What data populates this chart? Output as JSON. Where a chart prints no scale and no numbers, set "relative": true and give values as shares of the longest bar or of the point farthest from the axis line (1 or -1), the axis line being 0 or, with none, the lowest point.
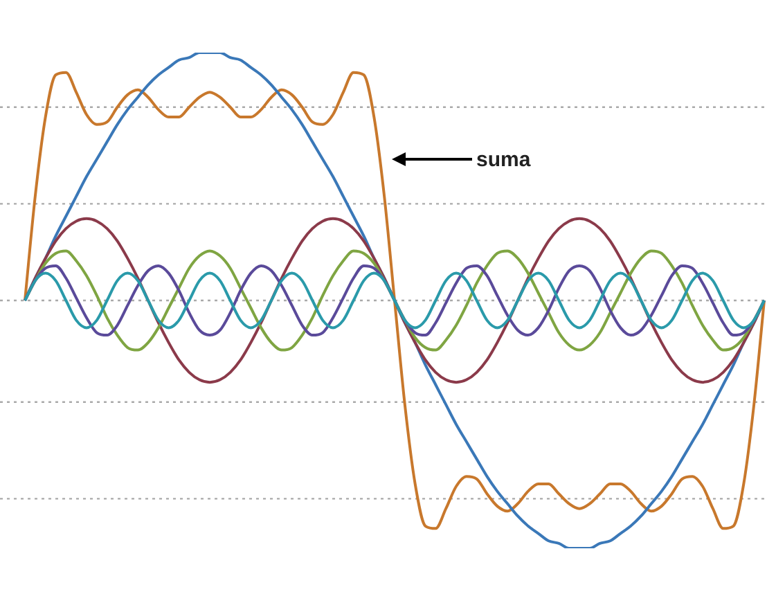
{
  "chart_data": {
    "type": "line",
    "relative": true,
    "legend": false,
    "marker": "none",
    "line_style": "solid",
    "categories": [
      null,
      null,
      null,
      null,
      null,
      null,
      null,
      null,
      null,
      null,
      null,
      null,
      null,
      null,
      null,
      null,
      null,
      null,
      null,
      null,
      null,
      null,
      null,
      null,
      null,
      null,
      null,
      null,
      null,
      null,
      null,
      null,
      null,
      null,
      null,
      null,
      null,
      null,
      null,
      null,
      null,
      null,
      null,
      null,
      null,
      null,
      null,
      null,
      null,
      null,
      null,
      null,
      null,
      null,
      null,
      null,
      null,
      null,
      null,
      null,
      null,
      null,
      null,
      null,
      null,
      null,
      null,
      null,
      null,
      null,
      null,
      null,
      null
    ],
    "series": [
      {
        "color": "#2a9aaa",
        "values": [
          0,
          0.08,
          0.11,
          0.08,
          0,
          -0.08,
          -0.11,
          -0.08,
          0,
          0.08,
          0.11,
          0.08,
          0,
          -0.08,
          -0.11,
          -0.08,
          0,
          0.08,
          0.11,
          0.08,
          0,
          -0.08,
          -0.11,
          -0.08,
          0,
          0.08,
          0.11,
          0.08,
          0,
          -0.08,
          -0.11,
          -0.08,
          0,
          0.08,
          0.11,
          0.08,
          0,
          -0.08,
          -0.11,
          -0.08,
          0,
          0.08,
          0.11,
          0.08,
          0,
          -0.08,
          -0.11,
          -0.08,
          0,
          0.08,
          0.11,
          0.08,
          0,
          -0.08,
          -0.11,
          -0.08,
          0,
          0.08,
          0.11,
          0.08,
          0,
          -0.08,
          -0.11,
          -0.08,
          0,
          0.08,
          0.11,
          0.08,
          0,
          -0.08,
          -0.11,
          -0.08,
          0
        ]
      },
      {
        "color": "#5a4a9a",
        "values": [
          0,
          0.08,
          0.13,
          0.14,
          0.09,
          0.01,
          -0.07,
          -0.13,
          -0.14,
          -0.1,
          -0.02,
          0.06,
          0.12,
          0.14,
          0.11,
          0.04,
          -0.05,
          -0.12,
          -0.14,
          -0.12,
          -0.05,
          0.04,
          0.11,
          0.14,
          0.12,
          0.06,
          -0.02,
          -0.1,
          -0.14,
          -0.13,
          -0.07,
          0.01,
          0.09,
          0.14,
          0.13,
          0.08,
          0,
          -0.08,
          -0.13,
          -0.14,
          -0.09,
          -0.01,
          0.07,
          0.13,
          0.14,
          0.1,
          0.02,
          -0.06,
          -0.12,
          -0.14,
          -0.11,
          -0.04,
          0.05,
          0.12,
          0.14,
          0.12,
          0.05,
          -0.04,
          -0.11,
          -0.14,
          -0.12,
          -0.06,
          0.02,
          0.1,
          0.14,
          0.13,
          0.07,
          -0.01,
          -0.09,
          -0.14,
          -0.13,
          -0.08,
          0
        ]
      },
      {
        "color": "#7fa542",
        "values": [
          0,
          0.08,
          0.15,
          0.19,
          0.2,
          0.16,
          0.1,
          0.02,
          -0.07,
          -0.14,
          -0.19,
          -0.2,
          -0.17,
          -0.11,
          -0.03,
          0.05,
          0.13,
          0.18,
          0.2,
          0.18,
          0.13,
          0.05,
          -0.03,
          -0.11,
          -0.17,
          -0.2,
          -0.19,
          -0.14,
          -0.07,
          0.02,
          0.1,
          0.16,
          0.2,
          0.19,
          0.15,
          0.08,
          0,
          -0.08,
          -0.15,
          -0.19,
          -0.2,
          -0.16,
          -0.1,
          -0.02,
          0.07,
          0.14,
          0.19,
          0.2,
          0.17,
          0.11,
          0.03,
          -0.05,
          -0.13,
          -0.18,
          -0.2,
          -0.18,
          -0.13,
          -0.05,
          0.03,
          0.11,
          0.17,
          0.2,
          0.19,
          0.14,
          0.07,
          -0.02,
          -0.1,
          -0.16,
          -0.2,
          -0.19,
          -0.15,
          -0.08,
          0
        ]
      },
      {
        "color": "#8b3a4a",
        "values": [
          0,
          0.09,
          0.17,
          0.24,
          0.29,
          0.32,
          0.33,
          0.32,
          0.29,
          0.24,
          0.17,
          0.09,
          0,
          -0.09,
          -0.17,
          -0.24,
          -0.29,
          -0.32,
          -0.33,
          -0.32,
          -0.29,
          -0.24,
          -0.17,
          -0.09,
          0,
          0.09,
          0.17,
          0.24,
          0.29,
          0.32,
          0.33,
          0.32,
          0.29,
          0.24,
          0.17,
          0.09,
          0,
          -0.09,
          -0.17,
          -0.24,
          -0.29,
          -0.32,
          -0.33,
          -0.32,
          -0.29,
          -0.24,
          -0.17,
          -0.09,
          0,
          0.09,
          0.17,
          0.24,
          0.29,
          0.32,
          0.33,
          0.32,
          0.29,
          0.24,
          0.17,
          0.09,
          0,
          -0.09,
          -0.17,
          -0.24,
          -0.29,
          -0.32,
          -0.33,
          -0.32,
          -0.29,
          -0.24,
          -0.17,
          -0.09,
          0
        ]
      },
      {
        "color": "#3a78b8",
        "values": [
          0,
          0.09,
          0.17,
          0.26,
          0.34,
          0.42,
          0.5,
          0.57,
          0.64,
          0.71,
          0.77,
          0.82,
          0.87,
          0.91,
          0.94,
          0.97,
          0.98,
          1,
          1,
          1,
          0.98,
          0.97,
          0.94,
          0.91,
          0.87,
          0.82,
          0.77,
          0.71,
          0.64,
          0.57,
          0.5,
          0.42,
          0.34,
          0.26,
          0.17,
          0.09,
          0,
          -0.09,
          -0.17,
          -0.26,
          -0.34,
          -0.42,
          -0.5,
          -0.57,
          -0.64,
          -0.71,
          -0.77,
          -0.82,
          -0.87,
          -0.91,
          -0.94,
          -0.97,
          -0.98,
          -1,
          -1,
          -1,
          -0.98,
          -0.97,
          -0.94,
          -0.91,
          -0.87,
          -0.82,
          -0.77,
          -0.71,
          -0.64,
          -0.57,
          -0.5,
          -0.42,
          -0.34,
          -0.26,
          -0.17,
          -0.09,
          0
        ]
      },
      {
        "color": "#c8782c",
        "values": [
          0,
          0.42,
          0.74,
          0.91,
          0.92,
          0.84,
          0.75,
          0.71,
          0.72,
          0.78,
          0.83,
          0.85,
          0.82,
          0.77,
          0.74,
          0.74,
          0.78,
          0.82,
          0.84,
          0.82,
          0.78,
          0.74,
          0.74,
          0.77,
          0.82,
          0.85,
          0.83,
          0.78,
          0.72,
          0.71,
          0.75,
          0.84,
          0.92,
          0.91,
          0.74,
          0.42,
          0,
          -0.42,
          -0.74,
          -0.91,
          -0.92,
          -0.84,
          -0.75,
          -0.71,
          -0.72,
          -0.78,
          -0.83,
          -0.85,
          -0.82,
          -0.77,
          -0.74,
          -0.74,
          -0.78,
          -0.82,
          -0.84,
          -0.82,
          -0.78,
          -0.74,
          -0.74,
          -0.77,
          -0.82,
          -0.85,
          -0.83,
          -0.78,
          -0.72,
          -0.71,
          -0.75,
          -0.84,
          -0.92,
          -0.91,
          -0.74,
          -0.42,
          0
        ]
      }
    ],
    "ref_lines": [
      {
        "axis": "y",
        "value": 0.78,
        "color": "#aaaaaa",
        "line_style": "dotted"
      },
      {
        "axis": "y",
        "value": 0.39,
        "color": "#aaaaaa",
        "line_style": "dotted"
      },
      {
        "axis": "y",
        "value": 0,
        "color": "#aaaaaa",
        "line_style": "dotted"
      },
      {
        "axis": "y",
        "value": -0.41,
        "color": "#aaaaaa",
        "line_style": "dotted"
      },
      {
        "axis": "y",
        "value": -0.8,
        "color": "#aaaaaa",
        "line_style": "dotted"
      }
    ],
    "annotations": [
      "suma"
    ]
  }
}
